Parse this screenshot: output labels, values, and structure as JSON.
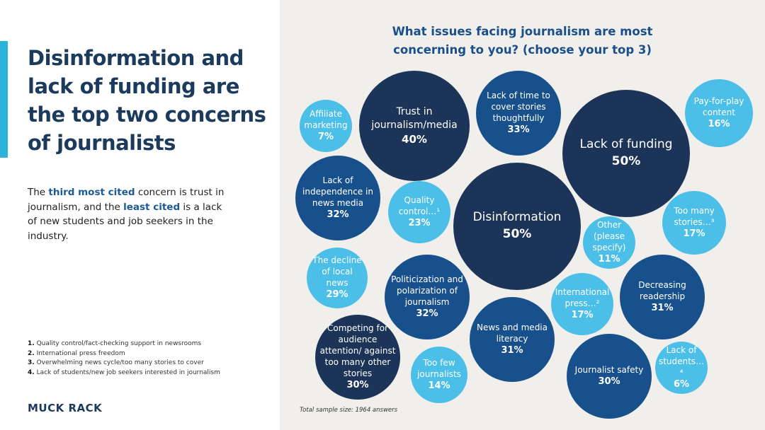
{
  "headline": "Disinformation and lack of funding are the top two concerns of journalists",
  "body": {
    "p1": "The ",
    "b1": "third most cited",
    "p2": " concern is trust in journalism, and the ",
    "b2": "least cited",
    "p3": " is a lack of new students and job seekers in the industry."
  },
  "footnotes": [
    {
      "num": "1.",
      "text": "Quality control/fact-checking support in newsrooms"
    },
    {
      "num": "2.",
      "text": "International press freedom"
    },
    {
      "num": "3.",
      "text": "Overwhelming news cycle/too many stories to cover"
    },
    {
      "num": "4.",
      "text": "Lack of students/new job seekers interested in journalism"
    }
  ],
  "logo": "MUCK RACK",
  "colors": {
    "dark": "#1c3458",
    "mid": "#18508c",
    "light": "#4bbfe8"
  },
  "chart": {
    "title_line1": "What issues facing journalism are most",
    "title_line2": "concerning to you? (choose your top 3)",
    "sample": "Total sample size: 1964 answers",
    "bubbles": [
      {
        "label": "Affiliate marketing",
        "pct": "7%"
      },
      {
        "label": "Trust in journalism/media",
        "pct": "40%"
      },
      {
        "label": "Lack of time to cover stories thoughtfully",
        "pct": "33%"
      },
      {
        "label": "Lack of funding",
        "pct": "50%"
      },
      {
        "label": "Pay-for-play content",
        "pct": "16%"
      },
      {
        "label": "Lack of independence in news media",
        "pct": "32%"
      },
      {
        "label": "Quality control…¹",
        "pct": "23%"
      },
      {
        "label": "Disinformation",
        "pct": "50%"
      },
      {
        "label": "Too many stories…³",
        "pct": "17%"
      },
      {
        "label": "Other (please specify)",
        "pct": "11%"
      },
      {
        "label": "The decline of local news",
        "pct": "29%"
      },
      {
        "label": "Politicization and polarization of journalism",
        "pct": "32%"
      },
      {
        "label": "International press…²",
        "pct": "17%"
      },
      {
        "label": "Decreasing readership",
        "pct": "31%"
      },
      {
        "label": "Competing for audience attention/ against too many other stories",
        "pct": "30%"
      },
      {
        "label": "Too few journalists",
        "pct": "14%"
      },
      {
        "label": "News and media literacy",
        "pct": "31%"
      },
      {
        "label": "Journalist safety",
        "pct": "30%"
      },
      {
        "label": "Lack of students…⁴",
        "pct": "6%"
      }
    ]
  }
}
